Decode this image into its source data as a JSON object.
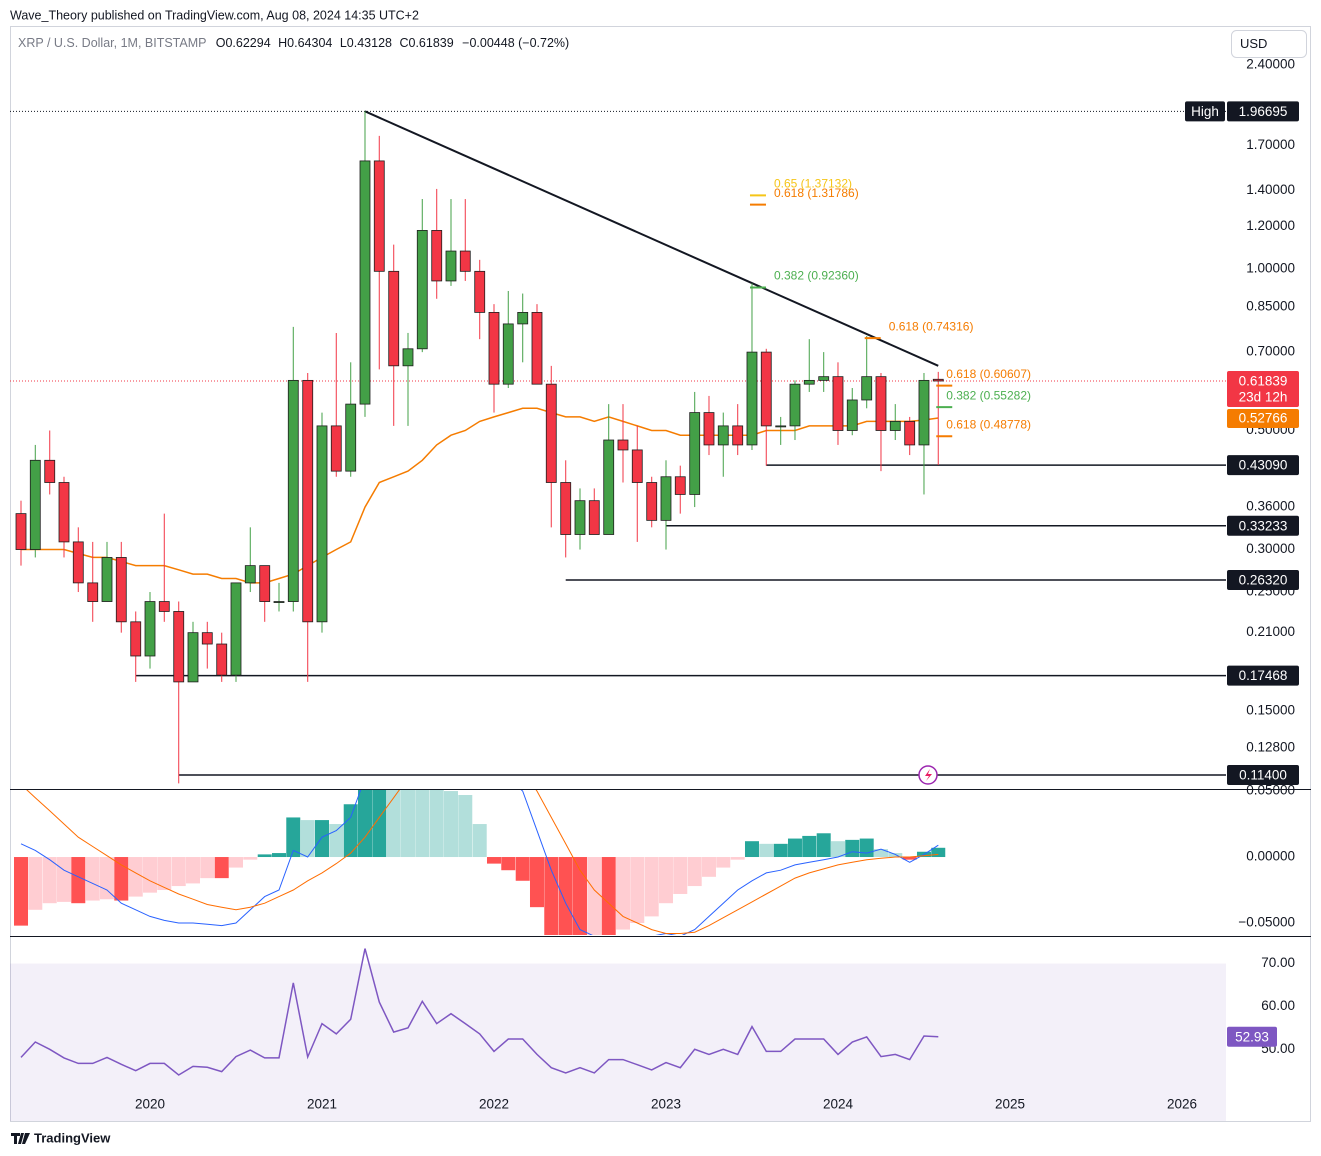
{
  "header": {
    "publisher": "Wave_Theory published on TradingView.com, Aug 08, 2024 14:35 UTC+2",
    "symbol": "XRP / U.S. Dollar, 1M, BITSTAMP",
    "ohlc_letters": [
      "O",
      "H",
      "L",
      "C"
    ],
    "change": "−0.00448 (−0.72%)",
    "currency": "USD"
  },
  "footer": {
    "brand": "TradingView"
  },
  "chart_data": [
    {
      "type": "candlestick",
      "x": [
        2019.25,
        2019.333,
        2019.417,
        2019.5,
        2019.583,
        2019.667,
        2019.75,
        2019.833,
        2019.917,
        2020,
        2020.083,
        2020.167,
        2020.25,
        2020.333,
        2020.417,
        2020.5,
        2020.583,
        2020.667,
        2020.75,
        2020.833,
        2020.917,
        2021,
        2021.083,
        2021.167,
        2021.25,
        2021.333,
        2021.417,
        2021.5,
        2021.583,
        2021.667,
        2021.75,
        2021.833,
        2021.917,
        2022,
        2022.083,
        2022.167,
        2022.25,
        2022.333,
        2022.417,
        2022.5,
        2022.583,
        2022.667,
        2022.75,
        2022.833,
        2022.917,
        2023,
        2023.083,
        2023.167,
        2023.25,
        2023.333,
        2023.417,
        2023.5,
        2023.583,
        2023.667,
        2023.75,
        2023.833,
        2023.917,
        2024,
        2024.083,
        2024.167,
        2024.25,
        2024.333,
        2024.417,
        2024.5,
        2024.583
      ],
      "open": [
        0.35,
        0.3,
        0.44,
        0.4,
        0.31,
        0.26,
        0.24,
        0.29,
        0.22,
        0.19,
        0.24,
        0.23,
        0.17,
        0.21,
        0.2,
        0.175,
        0.26,
        0.28,
        0.24,
        0.24,
        0.62,
        0.22,
        0.51,
        0.42,
        0.56,
        1.59,
        0.99,
        0.66,
        0.71,
        1.18,
        0.95,
        1.08,
        0.99,
        0.83,
        0.61,
        0.79,
        0.83,
        0.61,
        0.4,
        0.32,
        0.37,
        0.32,
        0.48,
        0.46,
        0.4,
        0.34,
        0.41,
        0.38,
        0.54,
        0.47,
        0.51,
        0.47,
        0.7,
        0.51,
        0.51,
        0.61,
        0.62,
        0.63,
        0.5,
        0.57,
        0.63,
        0.5,
        0.52,
        0.47,
        0.62294
      ],
      "high": [
        0.37,
        0.47,
        0.5,
        0.41,
        0.33,
        0.31,
        0.31,
        0.31,
        0.23,
        0.25,
        0.35,
        0.24,
        0.22,
        0.22,
        0.21,
        0.26,
        0.33,
        0.28,
        0.26,
        0.78,
        0.64,
        0.54,
        0.76,
        0.67,
        1.96695,
        1.77,
        1.11,
        0.76,
        1.35,
        1.41,
        1.35,
        1.35,
        1.04,
        0.86,
        0.91,
        0.9,
        0.86,
        0.66,
        0.44,
        0.39,
        0.39,
        0.56,
        0.56,
        0.51,
        0.41,
        0.44,
        0.43,
        0.59,
        0.58,
        0.54,
        0.56,
        0.94,
        0.71,
        0.53,
        0.62,
        0.74,
        0.7,
        0.67,
        0.6,
        0.75,
        0.64,
        0.56,
        0.53,
        0.64,
        0.64304
      ],
      "low": [
        0.28,
        0.29,
        0.38,
        0.29,
        0.25,
        0.22,
        0.24,
        0.21,
        0.17,
        0.18,
        0.22,
        0.11,
        0.17,
        0.18,
        0.17,
        0.17,
        0.25,
        0.22,
        0.23,
        0.23,
        0.17,
        0.21,
        0.41,
        0.41,
        0.53,
        0.65,
        0.51,
        0.51,
        0.7,
        0.88,
        0.93,
        0.95,
        0.74,
        0.54,
        0.6,
        0.67,
        0.61,
        0.33,
        0.29,
        0.3,
        0.32,
        0.32,
        0.4,
        0.31,
        0.33,
        0.3,
        0.35,
        0.36,
        0.45,
        0.41,
        0.45,
        0.46,
        0.43,
        0.47,
        0.48,
        0.59,
        0.59,
        0.47,
        0.49,
        0.55,
        0.42,
        0.48,
        0.45,
        0.38,
        0.43128
      ],
      "close": [
        0.3,
        0.44,
        0.4,
        0.31,
        0.26,
        0.24,
        0.29,
        0.22,
        0.19,
        0.24,
        0.23,
        0.17,
        0.21,
        0.2,
        0.175,
        0.26,
        0.28,
        0.24,
        0.24,
        0.62,
        0.22,
        0.51,
        0.42,
        0.56,
        1.59,
        0.99,
        0.66,
        0.71,
        1.18,
        0.95,
        1.08,
        0.99,
        0.83,
        0.61,
        0.79,
        0.83,
        0.61,
        0.4,
        0.32,
        0.37,
        0.32,
        0.48,
        0.46,
        0.4,
        0.34,
        0.41,
        0.38,
        0.54,
        0.47,
        0.51,
        0.47,
        0.7,
        0.51,
        0.51,
        0.61,
        0.62,
        0.63,
        0.5,
        0.57,
        0.63,
        0.5,
        0.52,
        0.47,
        0.62,
        0.61839
      ],
      "up_color": "#43a047",
      "down_color": "#f23645",
      "ma": {
        "color": "#f57c00",
        "values": [
          0.3,
          0.3,
          0.3,
          0.3,
          0.295,
          0.29,
          0.29,
          0.285,
          0.28,
          0.28,
          0.28,
          0.275,
          0.27,
          0.27,
          0.265,
          0.265,
          0.26,
          0.26,
          0.265,
          0.27,
          0.28,
          0.29,
          0.3,
          0.31,
          0.36,
          0.4,
          0.41,
          0.42,
          0.44,
          0.47,
          0.49,
          0.5,
          0.52,
          0.53,
          0.54,
          0.55,
          0.55,
          0.54,
          0.53,
          0.53,
          0.52,
          0.53,
          0.52,
          0.51,
          0.5,
          0.5,
          0.49,
          0.49,
          0.49,
          0.49,
          0.49,
          0.49,
          0.5,
          0.5,
          0.5,
          0.51,
          0.51,
          0.51,
          0.51,
          0.52,
          0.52,
          0.52,
          0.52,
          0.523,
          0.52766
        ]
      },
      "log": true,
      "xlim": [
        2019.186,
        2026.256
      ],
      "xticks": [
        2020,
        2021,
        2022,
        2023,
        2024,
        2025,
        2026
      ],
      "ylim": [
        0.1069,
        2.911
      ],
      "yticks": [
        {
          "value": 2.4,
          "label": "2.40000"
        },
        {
          "value": 1.7,
          "label": "1.70000"
        },
        {
          "value": 1.4,
          "label": "1.40000"
        },
        {
          "value": 1.2,
          "label": "1.20000"
        },
        {
          "value": 1.0,
          "label": "1.00000"
        },
        {
          "value": 0.85,
          "label": "0.85000"
        },
        {
          "value": 0.7,
          "label": "0.70000"
        },
        {
          "value": 0.5,
          "label": "0.50000"
        },
        {
          "value": 0.36,
          "label": "0.36000"
        },
        {
          "value": 0.3,
          "label": "0.30000"
        },
        {
          "value": 0.25,
          "label": "0.25000"
        },
        {
          "value": 0.21,
          "label": "0.21000"
        },
        {
          "value": 0.175,
          "label": "0.17500"
        },
        {
          "value": 0.15,
          "label": "0.15000"
        },
        {
          "value": 0.128,
          "label": "0.12800"
        }
      ],
      "high_label": "High",
      "countdown": "23d 12h",
      "levels": [
        {
          "value": 0.4309,
          "label": "0.43090",
          "x": 2023.583
        },
        {
          "value": 0.33233,
          "label": "0.33233",
          "x": 2023.0
        },
        {
          "value": 0.2632,
          "label": "0.26320",
          "x": 2022.417
        },
        {
          "value": 0.17468,
          "label": "0.17468",
          "x": 2019.917
        },
        {
          "value": 0.114,
          "label": "0.11400",
          "x": 2020.167
        }
      ],
      "trendline": {
        "x": [
          2021.25,
          2024.583
        ],
        "values": [
          1.96695,
          0.66
        ]
      },
      "fibs": [
        {
          "label": "0.65 (1.37132)",
          "value": 1.37132,
          "color": "#f5c518",
          "x": 2023.5
        },
        {
          "label": "0.618 (1.31786)",
          "value": 1.31786,
          "color": "#f57c00",
          "x": 2023.5
        },
        {
          "label": "0.382 (0.92360)",
          "value": 0.9236,
          "color": "#4caf50",
          "x": 2023.5
        },
        {
          "label": "0.618 (0.74316)",
          "value": 0.74316,
          "color": "#f57c00",
          "x": 2024.167
        },
        {
          "label": "0.618 (0.60607)",
          "value": 0.60607,
          "color": "#f57c00",
          "x": 2024.583
        },
        {
          "label": "0.382 (0.55282)",
          "value": 0.55282,
          "color": "#4caf50",
          "x": 2024.583
        },
        {
          "label": "0.618 (0.48778)",
          "value": 0.48778,
          "color": "#f57c00",
          "x": 2024.583
        }
      ]
    },
    {
      "type": "macd",
      "histogram": [
        -0.052,
        -0.04,
        -0.035,
        -0.034,
        -0.035,
        -0.033,
        -0.032,
        -0.033,
        -0.03,
        -0.027,
        -0.025,
        -0.022,
        -0.02,
        -0.016,
        -0.016,
        -0.008,
        -0.002,
        0.002,
        0.003,
        0.03,
        0.028,
        0.028,
        0.025,
        0.04,
        0.06,
        0.07,
        0.065,
        0.06,
        0.055,
        0.052,
        0.05,
        0.047,
        0.025,
        -0.005,
        -0.01,
        -0.018,
        -0.038,
        -0.06,
        -0.065,
        -0.065,
        -0.06,
        -0.06,
        -0.055,
        -0.05,
        -0.045,
        -0.035,
        -0.028,
        -0.022,
        -0.015,
        -0.008,
        -0.002,
        0.012,
        0.01,
        0.01,
        0.014,
        0.016,
        0.018,
        0.012,
        0.013,
        0.014,
        0.006,
        0.003,
        -0.002,
        0.004,
        0.007
      ],
      "hist_colors": {
        "pos_up": "#26a69a",
        "pos_down": "#b2dfdb",
        "neg_down": "#ff5252",
        "neg_up": "#ffcdd2"
      },
      "macd": {
        "color": "#2962ff",
        "values": [
          0.01,
          0.005,
          -0.002,
          -0.01,
          -0.015,
          -0.02,
          -0.025,
          -0.035,
          -0.04,
          -0.045,
          -0.048,
          -0.05,
          -0.05,
          -0.051,
          -0.052,
          -0.05,
          -0.04,
          -0.03,
          -0.025,
          0.005,
          0.0,
          0.015,
          0.02,
          0.03,
          0.06,
          0.08,
          0.09,
          0.1,
          0.1,
          0.1,
          0.1,
          0.1,
          0.09,
          0.07,
          0.06,
          0.05,
          0.02,
          -0.01,
          -0.035,
          -0.055,
          -0.06,
          -0.06,
          -0.06,
          -0.062,
          -0.06,
          -0.058,
          -0.06,
          -0.055,
          -0.045,
          -0.035,
          -0.025,
          -0.018,
          -0.012,
          -0.01,
          -0.006,
          -0.004,
          -0.002,
          0.0,
          0.004,
          0.003,
          0.006,
          0.002,
          -0.004,
          0.002,
          0.009
        ]
      },
      "signal": {
        "color": "#ff6d00",
        "values": [
          0.055,
          0.045,
          0.035,
          0.025,
          0.015,
          0.008,
          0.001,
          -0.006,
          -0.012,
          -0.018,
          -0.023,
          -0.028,
          -0.032,
          -0.036,
          -0.038,
          -0.04,
          -0.038,
          -0.035,
          -0.03,
          -0.025,
          -0.018,
          -0.012,
          -0.005,
          0.003,
          0.015,
          0.03,
          0.045,
          0.06,
          0.075,
          0.085,
          0.09,
          0.095,
          0.095,
          0.09,
          0.08,
          0.065,
          0.05,
          0.03,
          0.01,
          -0.01,
          -0.025,
          -0.035,
          -0.045,
          -0.05,
          -0.055,
          -0.058,
          -0.058,
          -0.057,
          -0.052,
          -0.046,
          -0.04,
          -0.034,
          -0.028,
          -0.022,
          -0.016,
          -0.012,
          -0.009,
          -0.006,
          -0.004,
          -0.002,
          -0.001,
          0.0,
          0.0,
          0.001,
          0.002
        ]
      },
      "ylim": [
        -0.0591,
        0.0508
      ],
      "yticks": [
        {
          "value": 0.05,
          "label": "0.05000"
        },
        {
          "value": 0,
          "label": "0.00000"
        },
        {
          "value": -0.05,
          "label": "−0.05000"
        }
      ]
    },
    {
      "type": "line",
      "values": [
        48.1,
        51.7,
        50,
        48,
        46.7,
        46.7,
        48.1,
        46.5,
        45,
        46.7,
        46.7,
        44,
        46,
        45.8,
        44.8,
        48.3,
        49.8,
        48,
        48,
        65.5,
        48.2,
        56,
        53.6,
        57,
        73.5,
        61,
        54,
        55,
        61.2,
        56,
        58.3,
        56,
        53.6,
        49.5,
        52.4,
        52.4,
        48.8,
        45.7,
        44.5,
        45.7,
        44.5,
        47.6,
        47.6,
        46.4,
        45.2,
        46.9,
        45.7,
        50,
        48.8,
        50,
        48.8,
        55.3,
        49.5,
        49.5,
        52.4,
        52.4,
        52.4,
        48.8,
        51.7,
        52.9,
        48.3,
        48.8,
        47.6,
        53.1,
        52.93
      ],
      "color": "#7e57c2",
      "band": [
        30,
        70
      ],
      "band_color": "#7e57c2",
      "ylim": [
        40.5,
        76.2
      ],
      "yticks": [
        {
          "value": 70,
          "label": "70.00"
        },
        {
          "value": 60,
          "label": "60.00"
        },
        {
          "value": 50,
          "label": "50.00"
        }
      ]
    }
  ]
}
